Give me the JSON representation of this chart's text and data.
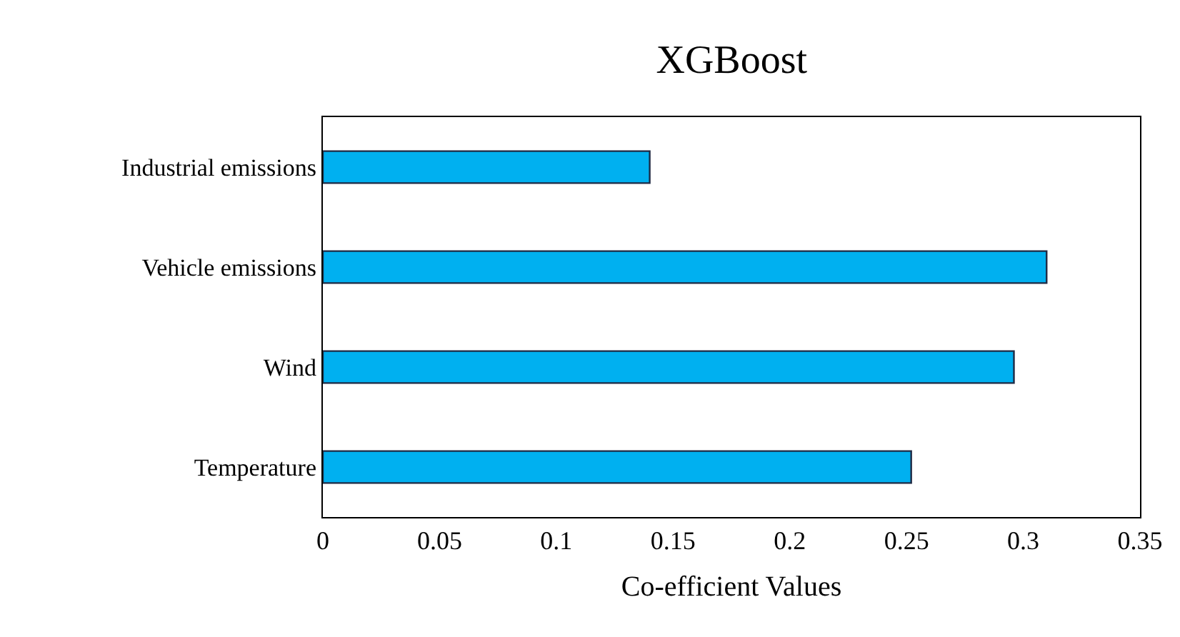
{
  "chart_data": {
    "type": "bar",
    "orientation": "horizontal",
    "title": "XGBoost",
    "xlabel": "Co-efficient Values",
    "categories": [
      "Industrial emissions",
      "Vehicle emissions",
      "Wind",
      "Temperature"
    ],
    "values": [
      0.14,
      0.31,
      0.296,
      0.252
    ],
    "color": "#00b0f0",
    "xlim": [
      0,
      0.35
    ],
    "xticks": [
      0,
      0.05,
      0.1,
      0.15,
      0.2,
      0.25,
      0.3,
      0.35
    ],
    "legend": false
  }
}
